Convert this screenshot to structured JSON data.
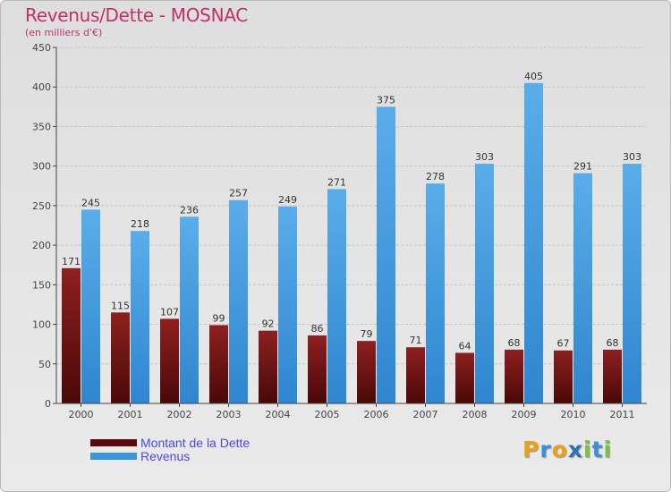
{
  "chart_data": {
    "type": "bar",
    "title": "Revenus/Dette - MOSNAC",
    "subtitle": "(en milliers d'€)",
    "categories": [
      "2000",
      "2001",
      "2002",
      "2003",
      "2004",
      "2005",
      "2006",
      "2007",
      "2008",
      "2009",
      "2010",
      "2011"
    ],
    "series": [
      {
        "name": "Montant de la Dette",
        "color": "#8b1a1a",
        "values": [
          171,
          115,
          107,
          99,
          92,
          86,
          79,
          71,
          64,
          68,
          67,
          68
        ]
      },
      {
        "name": "Revenus",
        "color": "#4fa3e3",
        "values": [
          245,
          218,
          236,
          257,
          249,
          271,
          375,
          278,
          303,
          405,
          291,
          303
        ]
      }
    ],
    "yticks": [
      0,
      50,
      100,
      150,
      200,
      250,
      300,
      350,
      400,
      450
    ],
    "ylim": [
      0,
      450
    ],
    "grid": true,
    "legend_position": "bottom-left"
  },
  "logo": {
    "letters": [
      "P",
      "r",
      "o",
      "x",
      "i",
      "t",
      "i"
    ],
    "colors": [
      "#e8a21a",
      "#3a8fd6",
      "#e8a21a",
      "#2e6fb8",
      "#7cc043",
      "#3a8fd6",
      "#7cc043"
    ]
  }
}
